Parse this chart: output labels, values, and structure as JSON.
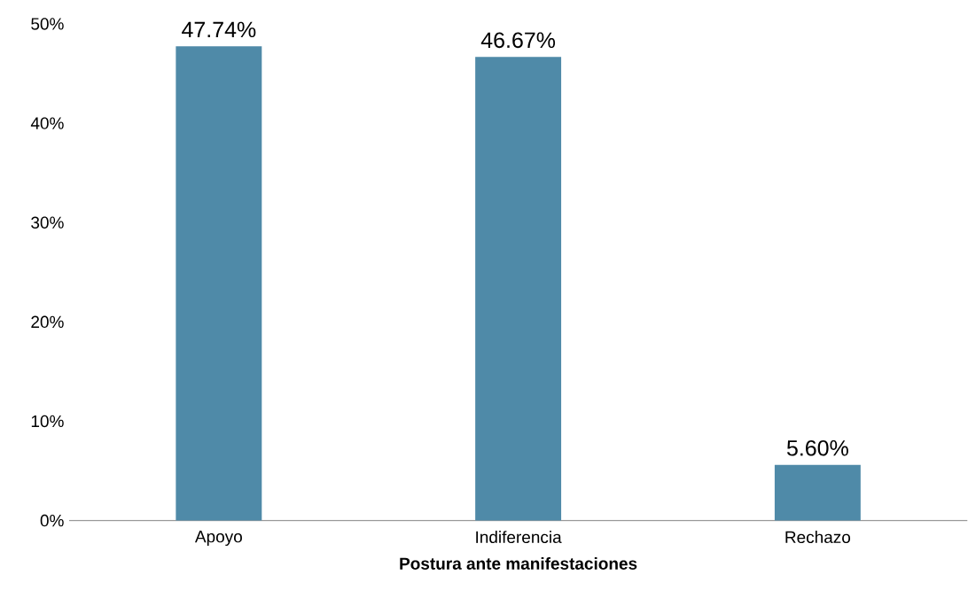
{
  "chart_data": {
    "type": "bar",
    "xlabel": "Postura ante manifestaciones",
    "categories": [
      "Apoyo",
      "Indiferencia",
      "Rechazo"
    ],
    "values": [
      47.74,
      46.67,
      5.6
    ],
    "value_labels": [
      "47.74%",
      "46.67%",
      "5.60%"
    ],
    "color": "#4f8aa8",
    "ylim": [
      0,
      50
    ],
    "yticks": [
      {
        "value": 0,
        "label": "0%"
      },
      {
        "value": 10,
        "label": "10%"
      },
      {
        "value": 20,
        "label": "20%"
      },
      {
        "value": 30,
        "label": "30%"
      },
      {
        "value": 40,
        "label": "40%"
      },
      {
        "value": 50,
        "label": "50%"
      }
    ],
    "grid": false
  }
}
